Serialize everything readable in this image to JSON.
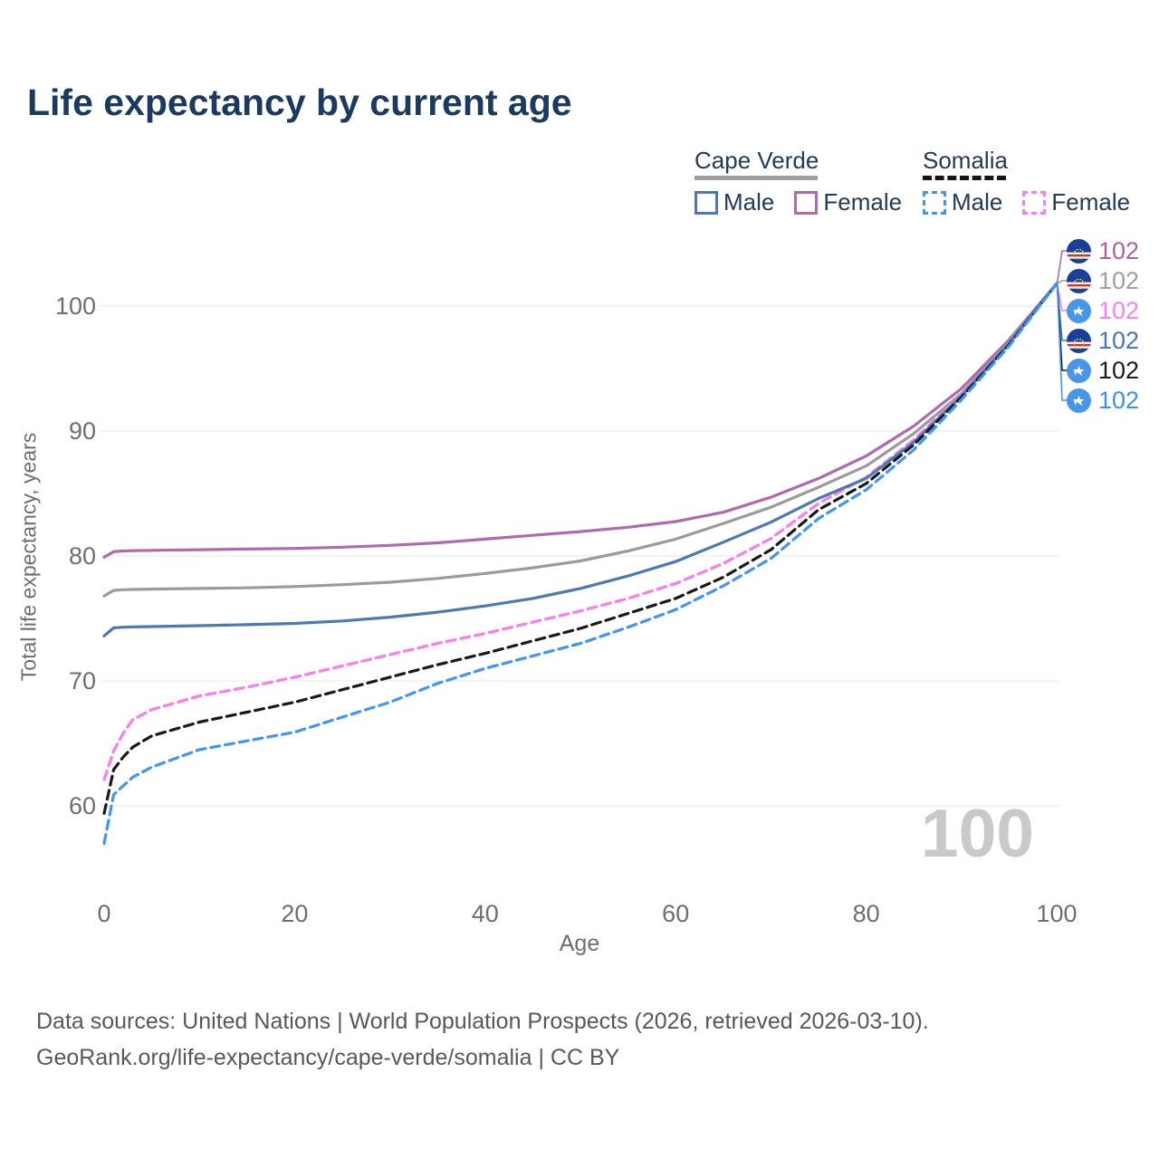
{
  "title": "Life expectancy by current age",
  "watermark": "100",
  "legend": {
    "groups": [
      {
        "name": "Cape Verde",
        "style": "solid",
        "underline_color": "#9f9f9f",
        "items": [
          {
            "label": "Male",
            "color": "#4d78b6"
          },
          {
            "label": "Female",
            "color": "#b069ae"
          }
        ]
      },
      {
        "name": "Somalia",
        "style": "dashed",
        "underline_color": "#141414",
        "items": [
          {
            "label": "Male",
            "color": "#3f96f7"
          },
          {
            "label": "Female",
            "color": "#fb7cec"
          }
        ]
      }
    ]
  },
  "footer": {
    "line1": "Data sources: United Nations | World Population Prospects (2026, retrieved 2026-03-10).",
    "line2": "GeoRank.org/life-expectancy/cape-verde/somalia | CC BY"
  },
  "colors": {
    "title_text": "#1b3a5f",
    "axis_text": "#6e6e6e",
    "grid": "#ececec",
    "watermark": "#c9c9c9"
  },
  "chart_data": {
    "type": "line",
    "title": "Life expectancy by current age",
    "xlabel": "Age",
    "ylabel": "Total life expectancy, years",
    "xlim": [
      0,
      100
    ],
    "ylim": [
      56,
      103
    ],
    "xticks": [
      0,
      20,
      40,
      60,
      80,
      100
    ],
    "yticks": [
      60,
      70,
      80,
      90,
      100
    ],
    "grid": "horizontal",
    "legend_position": "top-right",
    "x": [
      0,
      1,
      2,
      3,
      5,
      10,
      15,
      20,
      25,
      30,
      35,
      40,
      45,
      50,
      55,
      60,
      65,
      70,
      75,
      80,
      85,
      90,
      95,
      100
    ],
    "series": [
      {
        "name": "Cape Verde Female",
        "country": "Cape Verde",
        "sex": "Female",
        "color": "#b069ae",
        "dashed": false,
        "end_label": "102",
        "label_color": "#aa62a5",
        "flag": "cape-verde-flag-icon",
        "values": [
          79.9,
          80.35,
          80.4,
          80.42,
          80.45,
          80.5,
          80.55,
          80.6,
          80.7,
          80.85,
          81.05,
          81.35,
          81.65,
          81.95,
          82.3,
          82.75,
          83.5,
          84.7,
          86.2,
          88.0,
          90.4,
          93.4,
          97.3,
          101.8
        ]
      },
      {
        "name": "Cape Verde (both sexes)",
        "country": "Cape Verde",
        "sex": "All",
        "color": "#9b9b9b",
        "dashed": false,
        "end_label": "102",
        "label_color": "#a0a0a0",
        "flag": "cape-verde-flag-icon",
        "values": [
          76.8,
          77.25,
          77.3,
          77.32,
          77.35,
          77.4,
          77.45,
          77.55,
          77.7,
          77.9,
          78.2,
          78.6,
          79.05,
          79.6,
          80.4,
          81.35,
          82.6,
          83.9,
          85.5,
          87.2,
          89.8,
          93.0,
          97.1,
          101.8
        ]
      },
      {
        "name": "Somalia Female",
        "country": "Somalia",
        "sex": "Female",
        "color": "#fb7cec",
        "dashed": true,
        "end_label": "102",
        "label_color": "#fd7df5",
        "flag": "somalia-flag-icon",
        "values": [
          62.1,
          64.4,
          65.8,
          66.9,
          67.7,
          68.8,
          69.5,
          70.3,
          71.2,
          72.1,
          73.0,
          73.8,
          74.7,
          75.6,
          76.6,
          77.8,
          79.4,
          81.4,
          84.2,
          86.3,
          89.3,
          92.9,
          97.0,
          101.8
        ]
      },
      {
        "name": "Cape Verde Male",
        "country": "Cape Verde",
        "sex": "Male",
        "color": "#4d78b6",
        "dashed": false,
        "end_label": "102",
        "label_color": "#4a77b8",
        "flag": "cape-verde-flag-icon",
        "values": [
          73.6,
          74.25,
          74.3,
          74.32,
          74.35,
          74.42,
          74.5,
          74.6,
          74.8,
          75.1,
          75.5,
          76.0,
          76.6,
          77.4,
          78.4,
          79.55,
          81.1,
          82.7,
          84.6,
          86.2,
          89.1,
          92.8,
          97.0,
          101.8
        ]
      },
      {
        "name": "Somalia (both sexes)",
        "country": "Somalia",
        "sex": "All",
        "color": "#1a1a1a",
        "dashed": true,
        "end_label": "102",
        "label_color": "#1a1a1a",
        "flag": "somalia-flag-icon",
        "values": [
          59.4,
          62.9,
          63.9,
          64.7,
          65.6,
          66.7,
          67.5,
          68.3,
          69.3,
          70.3,
          71.3,
          72.2,
          73.2,
          74.2,
          75.4,
          76.6,
          78.3,
          80.5,
          83.7,
          85.8,
          88.9,
          92.7,
          96.9,
          101.8
        ]
      },
      {
        "name": "Somalia Male",
        "country": "Somalia",
        "sex": "Male",
        "color": "#3f96f7",
        "dashed": true,
        "end_label": "102",
        "label_color": "#3f8ef2",
        "flag": "somalia-flag-icon",
        "values": [
          57.0,
          60.9,
          61.6,
          62.3,
          63.1,
          64.5,
          65.2,
          65.9,
          67.1,
          68.3,
          69.8,
          71.0,
          72.0,
          73.0,
          74.3,
          75.7,
          77.6,
          79.8,
          83.0,
          85.3,
          88.5,
          92.5,
          96.8,
          101.8
        ]
      }
    ]
  }
}
